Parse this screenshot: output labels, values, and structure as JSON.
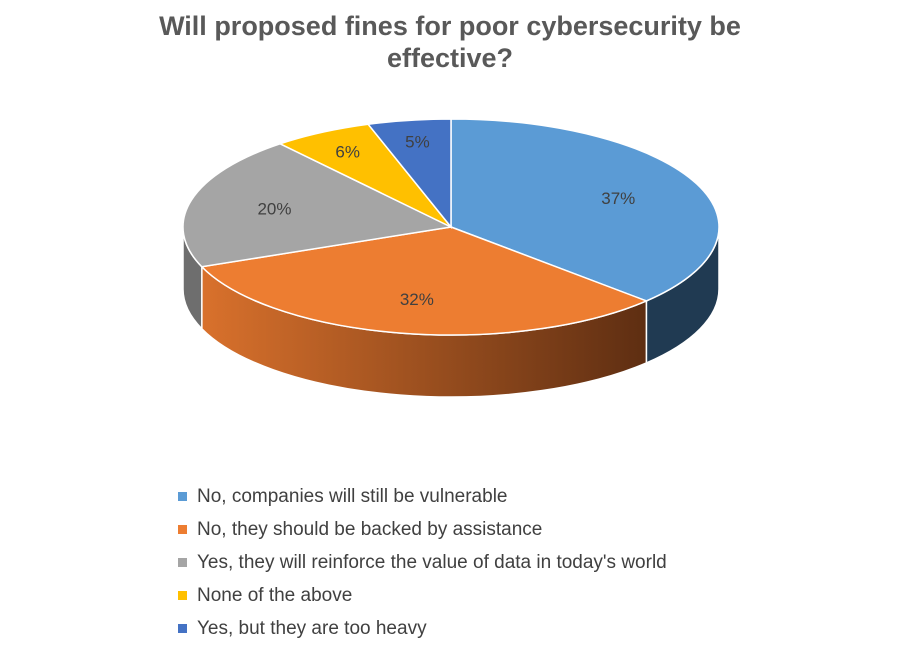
{
  "chart_data": {
    "type": "pie",
    "title_lines": [
      "Will proposed fines for poor cybersecurity be",
      "effective?"
    ],
    "slices": [
      {
        "label": "No, companies will still be vulnerable",
        "value": 37,
        "value_label": "37%",
        "color": "#5B9BD5",
        "side_dark": "#203A52"
      },
      {
        "label": "No, they should be backed by assistance",
        "value": 32,
        "value_label": "32%",
        "color": "#ED7D31",
        "side_light": "#D9712C",
        "side_dark": "#5E2E12"
      },
      {
        "label": "Yes, they will reinforce the value of data in today's world",
        "value": 20,
        "value_label": "20%",
        "color": "#A5A5A5",
        "side_dark": "#6E6E6E"
      },
      {
        "label": "None of the above",
        "value": 6,
        "value_label": "6%",
        "color": "#FFC000",
        "side_dark": "#8A6A00"
      },
      {
        "label": "Yes, but they are too heavy",
        "value": 5,
        "value_label": "5%",
        "color": "#4472C4",
        "side_dark": "#22396A"
      }
    ],
    "legend_position": "bottom"
  }
}
